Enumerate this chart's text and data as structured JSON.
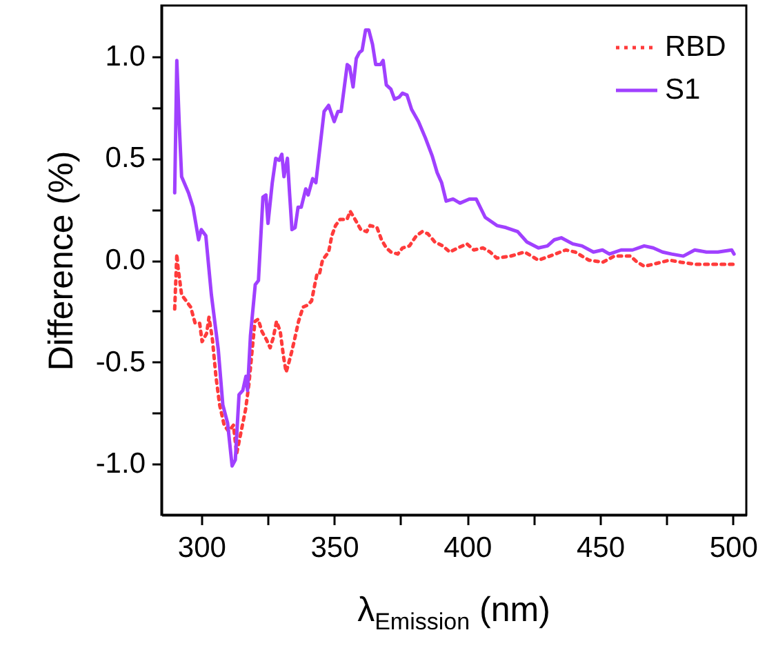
{
  "chart_data": {
    "type": "line",
    "xlabel": "λ$_{Emission}$ (nm)",
    "ylabel": "Difference (%)",
    "xlim": [
      285,
      505
    ],
    "ylim": [
      -1.25,
      1.25
    ],
    "xticks": [
      300,
      {
        "value": 325,
        "label": null
      },
      350,
      {
        "value": 375,
        "label": null
      },
      400,
      {
        "value": 425,
        "label": null
      },
      450,
      {
        "value": 475,
        "label": null
      },
      500
    ],
    "yticks": [
      {
        "value": -1,
        "label": "-1.0"
      },
      {
        "value": -0.75,
        "label": null
      },
      {
        "value": -0.5,
        "label": "-0.5"
      },
      {
        "value": -0.25,
        "label": null
      },
      {
        "value": 0,
        "label": "0.0"
      },
      {
        "value": 0.25,
        "label": null
      },
      {
        "value": 0.5,
        "label": "0.5"
      },
      {
        "value": 0.75,
        "label": null
      },
      {
        "value": 1,
        "label": "1.0"
      }
    ],
    "grid": false,
    "legend": "top right",
    "marker": "none",
    "series": [
      {
        "name": "RBD",
        "color": "#ff3b3b",
        "line_style": "dotted",
        "x": [
          290,
          290.8,
          291.2,
          291.6,
          292.6,
          294.3,
          296,
          297.7,
          299.4,
          300.3,
          302,
          302.9,
          304.2,
          305.5,
          306.9,
          308.6,
          310.3,
          312.1,
          313.3,
          315,
          316.7,
          317.9,
          319,
          320.2,
          321.4,
          322.8,
          324.5,
          325.9,
          327.1,
          328.3,
          329.7,
          330.9,
          331.9,
          332.8,
          334,
          334.9,
          336.6,
          338.3,
          340.1,
          341.5,
          342.7,
          343.5,
          344.4,
          345.6,
          347.9,
          349.1,
          350.5,
          352.2,
          354.8,
          356,
          357.4,
          360,
          362.2,
          363.5,
          366.1,
          367.8,
          369.6,
          371.3,
          373.9,
          375.7,
          378.3,
          380.9,
          383.1,
          385.2,
          387.8,
          390.8,
          393.5,
          396.5,
          399.9,
          402.5,
          406,
          408.6,
          411.2,
          416.4,
          421.6,
          426.8,
          431.1,
          437.1,
          440.6,
          445.8,
          451,
          455.4,
          461.4,
          464,
          466.6,
          470,
          476.1,
          480.4,
          485.6,
          492.6,
          500.4
        ],
        "values": [
          -0.24,
          0.03,
          -0.03,
          -0.07,
          -0.17,
          -0.2,
          -0.23,
          -0.31,
          -0.31,
          -0.4,
          -0.36,
          -0.28,
          -0.39,
          -0.57,
          -0.71,
          -0.81,
          -0.84,
          -0.81,
          -0.95,
          -0.84,
          -0.73,
          -0.61,
          -0.46,
          -0.3,
          -0.29,
          -0.35,
          -0.39,
          -0.43,
          -0.38,
          -0.3,
          -0.35,
          -0.47,
          -0.55,
          -0.51,
          -0.45,
          -0.4,
          -0.3,
          -0.23,
          -0.22,
          -0.2,
          -0.12,
          -0.07,
          -0.07,
          0,
          0.04,
          0.12,
          0.17,
          0.2,
          0.2,
          0.24,
          0.21,
          0.15,
          0.14,
          0.17,
          0.16,
          0.1,
          0.06,
          0.04,
          0.03,
          0.06,
          0.07,
          0.12,
          0.14,
          0.13,
          0.09,
          0.07,
          0.04,
          0.06,
          0.08,
          0.05,
          0.06,
          0.04,
          0.01,
          0.02,
          0.04,
          0,
          0.02,
          0.05,
          0.04,
          0,
          -0.01,
          0.02,
          0.02,
          -0.01,
          -0.03,
          -0.02,
          0,
          -0.01,
          -0.02,
          -0.02,
          -0.02
        ]
      },
      {
        "name": "S1",
        "color": "#a040ff",
        "line_style": "solid",
        "x": [
          290,
          290.8,
          291.7,
          292.6,
          295.2,
          296.9,
          299,
          300,
          301.7,
          303.8,
          306.4,
          308.1,
          309.9,
          311.6,
          312.8,
          314.2,
          315.6,
          316.8,
          317.4,
          318.5,
          320.3,
          321.5,
          323.2,
          324.3,
          325.1,
          326.7,
          328,
          329.3,
          330.3,
          331.1,
          332.4,
          333.2,
          334.1,
          335.3,
          336.4,
          337.6,
          339.3,
          340.2,
          341.9,
          343.1,
          346.2,
          347.9,
          350,
          351.4,
          352.6,
          354.9,
          355.8,
          357.1,
          358.3,
          359.5,
          360.5,
          361.8,
          363,
          364.4,
          365.6,
          367.4,
          368.4,
          369.6,
          371.3,
          372.7,
          374.4,
          375.7,
          377.4,
          379.1,
          381.7,
          384.3,
          386.9,
          388.7,
          390.4,
          392.1,
          394.7,
          397.3,
          400.8,
          403.4,
          406.8,
          411.2,
          414.6,
          419,
          422.4,
          426.8,
          430.2,
          432.8,
          435.4,
          439.7,
          443.2,
          447.5,
          450.9,
          453.5,
          457.9,
          462.2,
          466.6,
          470,
          473.5,
          476.9,
          481.3,
          485.6,
          490,
          494.3,
          499.5,
          500.4
        ],
        "values": [
          0.33,
          0.98,
          0.67,
          0.41,
          0.33,
          0.26,
          0.1,
          0.15,
          0.12,
          -0.17,
          -0.44,
          -0.71,
          -0.8,
          -1.01,
          -0.98,
          -0.66,
          -0.64,
          -0.57,
          -0.64,
          -0.37,
          -0.12,
          -0.1,
          0.31,
          0.32,
          0.18,
          0.38,
          0.5,
          0.49,
          0.52,
          0.41,
          0.5,
          0.33,
          0.15,
          0.16,
          0.26,
          0.26,
          0.35,
          0.32,
          0.4,
          0.38,
          0.73,
          0.76,
          0.68,
          0.73,
          0.73,
          0.96,
          0.95,
          0.85,
          0.99,
          1.02,
          1.03,
          1.13,
          1.13,
          1.06,
          0.96,
          0.96,
          0.98,
          0.86,
          0.84,
          0.79,
          0.8,
          0.82,
          0.81,
          0.74,
          0.68,
          0.6,
          0.51,
          0.43,
          0.38,
          0.29,
          0.3,
          0.28,
          0.3,
          0.3,
          0.21,
          0.17,
          0.16,
          0.14,
          0.09,
          0.06,
          0.07,
          0.1,
          0.11,
          0.08,
          0.07,
          0.04,
          0.05,
          0.03,
          0.05,
          0.05,
          0.07,
          0.06,
          0.04,
          0.03,
          0.02,
          0.05,
          0.04,
          0.04,
          0.05,
          0.03
        ]
      }
    ]
  }
}
